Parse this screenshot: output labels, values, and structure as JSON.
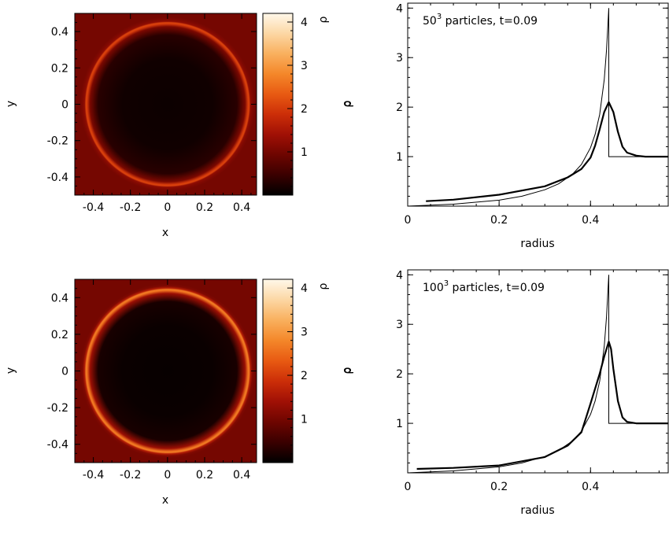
{
  "colors": {
    "colormap": [
      "#000000",
      "#3a0000",
      "#6e0500",
      "#a01005",
      "#cc2e08",
      "#e85a12",
      "#f4872a",
      "#f9b05e",
      "#fcd7a4",
      "#fff8ea"
    ],
    "line": "#000000",
    "background": "#ffffff"
  },
  "chart_data": [
    {
      "type": "heatmap",
      "panel": "top-left",
      "xlabel": "x",
      "ylabel": "y",
      "xlim": [
        -0.5,
        0.48
      ],
      "ylim": [
        -0.5,
        0.5
      ],
      "xticks": [
        -0.4,
        -0.2,
        0,
        0.2,
        0.4
      ],
      "xtick_labels": [
        "-0.4",
        "-0.2",
        "0",
        "0.2",
        "0.4"
      ],
      "yticks": [
        -0.4,
        -0.2,
        0,
        0.2,
        0.4
      ],
      "ytick_labels": [
        "-0.4",
        "-0.2",
        "0",
        "0.2",
        "0.4"
      ],
      "ring": {
        "center": [
          0,
          0
        ],
        "radius": 0.44,
        "peak_density": 2.1,
        "interior_density": 0.1,
        "background_density": 1.0
      },
      "colorbar": {
        "label": "ρ",
        "range": [
          0,
          4.2
        ],
        "ticks": [
          1,
          2,
          3,
          4
        ],
        "tick_labels": [
          "1",
          "2",
          "3",
          "4"
        ]
      }
    },
    {
      "type": "heatmap",
      "panel": "bottom-left",
      "xlabel": "x",
      "ylabel": "y",
      "xlim": [
        -0.5,
        0.48
      ],
      "ylim": [
        -0.5,
        0.5
      ],
      "xticks": [
        -0.4,
        -0.2,
        0,
        0.2,
        0.4
      ],
      "xtick_labels": [
        "-0.4",
        "-0.2",
        "0",
        "0.2",
        "0.4"
      ],
      "yticks": [
        -0.4,
        -0.2,
        0,
        0.2,
        0.4
      ],
      "ytick_labels": [
        "-0.4",
        "-0.2",
        "0",
        "0.2",
        "0.4"
      ],
      "ring": {
        "center": [
          0,
          0
        ],
        "radius": 0.44,
        "peak_density": 2.7,
        "interior_density": 0.06,
        "background_density": 1.0
      },
      "colorbar": {
        "label": "ρ",
        "range": [
          0,
          4.2
        ],
        "ticks": [
          1,
          2,
          3,
          4
        ],
        "tick_labels": [
          "1",
          "2",
          "3",
          "4"
        ]
      }
    },
    {
      "type": "line",
      "panel": "top-right",
      "xlabel": "radius",
      "ylabel": "ρ",
      "xlim": [
        0,
        0.57
      ],
      "ylim": [
        0,
        4.1
      ],
      "xticks": [
        0,
        0.2,
        0.4
      ],
      "xtick_labels": [
        "0",
        "0.2",
        "0.4"
      ],
      "yticks": [
        1,
        2,
        3,
        4
      ],
      "ytick_labels": [
        "1",
        "2",
        "3",
        "4"
      ],
      "annotation": {
        "base": "50",
        "superscript": "3",
        "rest": " particles, t=0.09"
      },
      "analytic": {
        "x": [
          0,
          0.1,
          0.2,
          0.25,
          0.3,
          0.33,
          0.36,
          0.38,
          0.4,
          0.41,
          0.42,
          0.43,
          0.435,
          0.44,
          0.44,
          0.57
        ],
        "y": [
          0.0,
          0.04,
          0.12,
          0.2,
          0.33,
          0.45,
          0.64,
          0.84,
          1.18,
          1.45,
          1.85,
          2.55,
          3.15,
          4.0,
          1.0,
          1.0
        ]
      },
      "particles": {
        "x": [
          0.04,
          0.1,
          0.2,
          0.3,
          0.35,
          0.38,
          0.4,
          0.41,
          0.42,
          0.43,
          0.44,
          0.45,
          0.46,
          0.47,
          0.48,
          0.5,
          0.52,
          0.57
        ],
        "y": [
          0.1,
          0.13,
          0.23,
          0.4,
          0.58,
          0.75,
          0.98,
          1.22,
          1.55,
          1.9,
          2.1,
          1.9,
          1.5,
          1.2,
          1.08,
          1.02,
          1.0,
          1.0
        ]
      }
    },
    {
      "type": "line",
      "panel": "bottom-right",
      "xlabel": "radius",
      "ylabel": "ρ",
      "xlim": [
        0,
        0.57
      ],
      "ylim": [
        0,
        4.1
      ],
      "xticks": [
        0,
        0.2,
        0.4
      ],
      "xtick_labels": [
        "0",
        "0.2",
        "0.4"
      ],
      "yticks": [
        1,
        2,
        3,
        4
      ],
      "ytick_labels": [
        "1",
        "2",
        "3",
        "4"
      ],
      "annotation": {
        "base": "100",
        "superscript": "3",
        "rest": " particles, t=0.09"
      },
      "analytic": {
        "x": [
          0,
          0.1,
          0.2,
          0.25,
          0.3,
          0.33,
          0.36,
          0.38,
          0.4,
          0.41,
          0.42,
          0.43,
          0.435,
          0.44,
          0.44,
          0.57
        ],
        "y": [
          0.0,
          0.04,
          0.12,
          0.2,
          0.33,
          0.45,
          0.64,
          0.84,
          1.18,
          1.45,
          1.85,
          2.55,
          3.15,
          4.0,
          1.0,
          1.0
        ]
      },
      "particles": {
        "x": [
          0.02,
          0.1,
          0.2,
          0.3,
          0.35,
          0.38,
          0.4,
          0.42,
          0.43,
          0.44,
          0.445,
          0.45,
          0.46,
          0.47,
          0.48,
          0.5,
          0.57
        ],
        "y": [
          0.08,
          0.1,
          0.15,
          0.32,
          0.55,
          0.82,
          1.4,
          2.0,
          2.35,
          2.65,
          2.5,
          2.1,
          1.45,
          1.12,
          1.03,
          1.0,
          1.0
        ]
      }
    }
  ]
}
